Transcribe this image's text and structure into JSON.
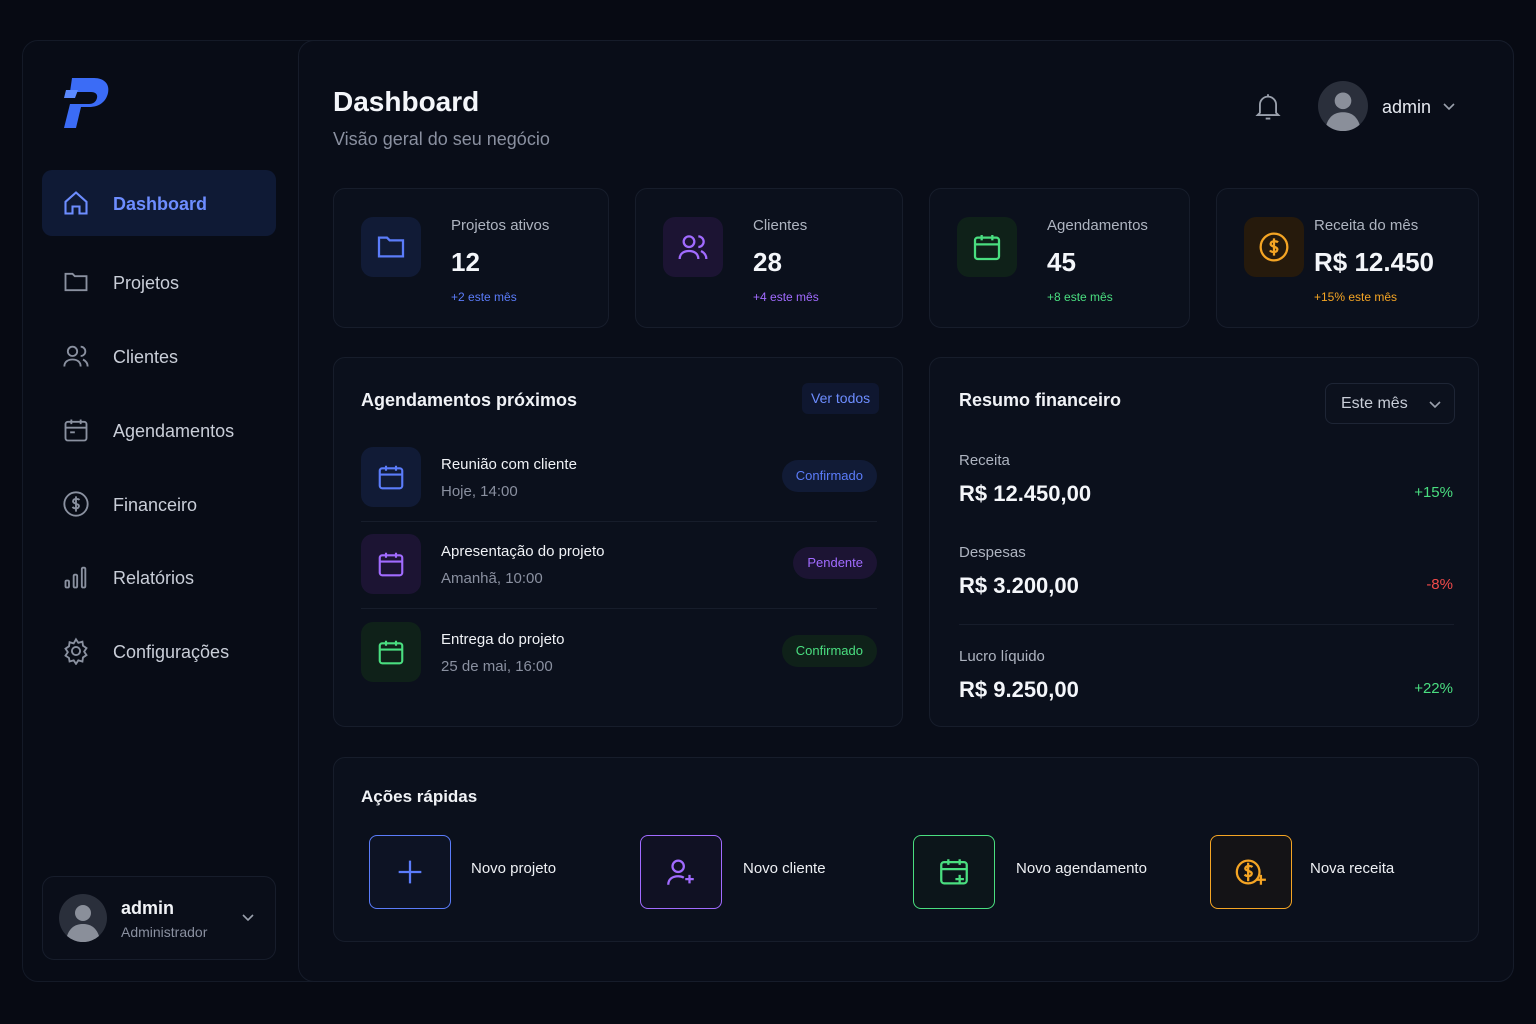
{
  "sidebar": {
    "nav": [
      "Dashboard",
      "Projetos",
      "Clientes",
      "Agendamentos",
      "Financeiro",
      "Relatórios",
      "Configurações"
    ],
    "user": {
      "name": "admin",
      "role": "Administrador"
    }
  },
  "header": {
    "title": "Dashboard",
    "subtitle": "Visão geral do seu negócio",
    "user": "admin"
  },
  "stats": [
    {
      "label": "Projetos ativos",
      "value": "12",
      "change": "+2 este mês"
    },
    {
      "label": "Clientes",
      "value": "28",
      "change": "+4 este mês"
    },
    {
      "label": "Agendamentos",
      "value": "45",
      "change": "+8 este mês"
    },
    {
      "label": "Receita do mês",
      "value": "R$ 12.450",
      "change": "+15% este mês"
    }
  ],
  "appointments": {
    "title": "Agendamentos próximos",
    "action": "Ver todos",
    "items": [
      {
        "title": "Reunião com cliente",
        "time": "Hoje, 14:00",
        "status": "Confirmado"
      },
      {
        "title": "Apresentação do projeto",
        "time": "Amanhã, 10:00",
        "status": "Pendente"
      },
      {
        "title": "Entrega do projeto",
        "time": "25 de mai, 16:00",
        "status": "Confirmado"
      }
    ]
  },
  "finance": {
    "title": "Resumo financeiro",
    "period": "Este mês",
    "rows": [
      {
        "label": "Receita",
        "value": "R$ 12.450,00",
        "change": "+15%"
      },
      {
        "label": "Despesas",
        "value": "R$ 3.200,00",
        "change": "-8%"
      },
      {
        "label": "Lucro líquido",
        "value": "R$ 9.250,00",
        "change": "+22%"
      }
    ]
  },
  "quick_actions": {
    "title": "Ações rápidas",
    "items": [
      "Novo projeto",
      "Novo cliente",
      "Novo agendamento",
      "Nova receita"
    ]
  }
}
